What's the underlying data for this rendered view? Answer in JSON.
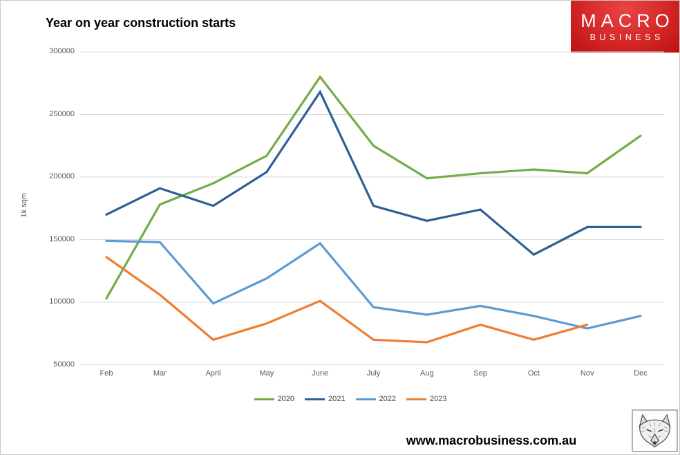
{
  "chart_data": {
    "type": "line",
    "title": "Year on year construction starts",
    "ylabel": "1k sqm",
    "xlabel": "",
    "categories": [
      "Feb",
      "Mar",
      "April",
      "May",
      "June",
      "July",
      "Aug",
      "Sep",
      "Oct",
      "Nov",
      "Dec"
    ],
    "ylim": [
      50000,
      300000
    ],
    "yticks": [
      300000,
      250000,
      200000,
      150000,
      100000,
      50000
    ],
    "grid": true,
    "legend_position": "bottom",
    "gridline_color": "#D9D9D9",
    "axis_text_color": "#595959",
    "series": [
      {
        "name": "2020",
        "color": "#70AD47",
        "values": [
          103000,
          178000,
          195000,
          217000,
          280000,
          225000,
          199000,
          203000,
          206000,
          203000,
          233000
        ]
      },
      {
        "name": "2021",
        "color": "#2E5E95",
        "values": [
          170000,
          191000,
          177000,
          204000,
          268000,
          177000,
          165000,
          174000,
          138000,
          160000,
          160000
        ]
      },
      {
        "name": "2022",
        "color": "#5B9BD5",
        "values": [
          149000,
          148000,
          99000,
          119000,
          147000,
          96000,
          90000,
          97000,
          89000,
          79000,
          89000
        ]
      },
      {
        "name": "2023",
        "color": "#ED7D31",
        "values": [
          136000,
          106000,
          70000,
          83000,
          101000,
          70000,
          68000,
          82000,
          70000,
          82000
        ]
      }
    ]
  },
  "logo": {
    "line1": "MACRO",
    "line2": "BUSINESS",
    "bg_color": "#CE2222",
    "text_color": "#FFFFFF"
  },
  "footer": {
    "url": "www.macrobusiness.com.au"
  },
  "icons": {
    "wolf": "wolf-sketch-icon"
  }
}
